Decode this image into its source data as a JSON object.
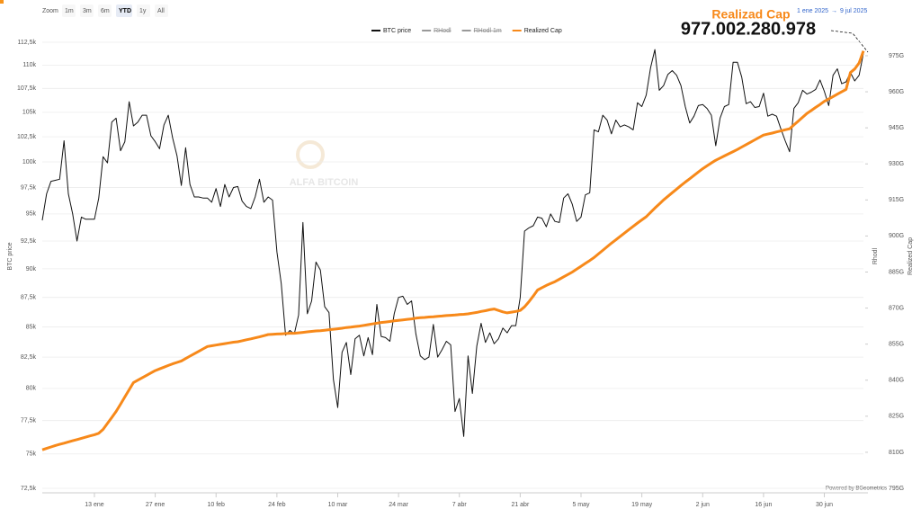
{
  "toolbar": {
    "zoom_label": "Zoom",
    "buttons": [
      "1m",
      "3m",
      "6m",
      "YTD",
      "1y",
      "All"
    ]
  },
  "date_range": {
    "from": "1 ene 2025",
    "arrow": "→",
    "to": "9 jul 2025"
  },
  "header": {
    "title": "Realizad Cap",
    "value": "977.002.280.978"
  },
  "watermark": "ALFA BITCOIN",
  "credit": "Powered by BGeometrics",
  "chart_data": {
    "type": "line",
    "categories": [
      null,
      null,
      null,
      null,
      null,
      null,
      null,
      null,
      null,
      null,
      null,
      null,
      "13 ene",
      null,
      null,
      null,
      null,
      null,
      null,
      null,
      null,
      null,
      null,
      null,
      null,
      null,
      "27 ene",
      null,
      null,
      null,
      null,
      null,
      null,
      null,
      null,
      null,
      null,
      null,
      null,
      null,
      "10 feb",
      null,
      null,
      null,
      null,
      null,
      null,
      null,
      null,
      null,
      null,
      null,
      null,
      null,
      "24 feb",
      null,
      null,
      null,
      null,
      null,
      null,
      null,
      null,
      null,
      null,
      null,
      null,
      null,
      "10 mar",
      null,
      null,
      null,
      null,
      null,
      null,
      null,
      null,
      null,
      null,
      null,
      null,
      null,
      "24 mar",
      null,
      null,
      null,
      null,
      null,
      null,
      null,
      null,
      null,
      null,
      null,
      null,
      null,
      "7 abr",
      null,
      null,
      null,
      null,
      null,
      null,
      null,
      null,
      null,
      null,
      null,
      null,
      null,
      "21 abr",
      null,
      null,
      null,
      null,
      null,
      null,
      null,
      null,
      null,
      null,
      null,
      null,
      null,
      "5 may",
      null,
      null,
      null,
      null,
      null,
      null,
      null,
      null,
      null,
      null,
      null,
      null,
      null,
      "19 may",
      null,
      null,
      null,
      null,
      null,
      null,
      null,
      null,
      null,
      null,
      null,
      null,
      null,
      "2 jun",
      null,
      null,
      null,
      null,
      null,
      null,
      null,
      null,
      null,
      null,
      null,
      null,
      null,
      "16 jun",
      null,
      null,
      null,
      null,
      null,
      null,
      null,
      null,
      null,
      null,
      null,
      null,
      null,
      "30 jun",
      null,
      null,
      null,
      null,
      null,
      null,
      null,
      null,
      null
    ],
    "series": [
      {
        "name": "BTC price",
        "color": "#111111",
        "axis": "y",
        "values": [
          94400,
          96900,
          98100,
          98200,
          98300,
          102100,
          96900,
          95000,
          92500,
          94700,
          94500,
          94500,
          94500,
          96500,
          100500,
          99900,
          104000,
          104400,
          101100,
          102000,
          106100,
          103600,
          104000,
          104700,
          104700,
          102600,
          102000,
          101300,
          103700,
          104700,
          102400,
          100600,
          97700,
          101400,
          97800,
          96600,
          96600,
          96500,
          96500,
          96100,
          97400,
          95700,
          97800,
          96600,
          97500,
          97600,
          96200,
          95700,
          95500,
          96600,
          98300,
          96100,
          96600,
          96300,
          91500,
          88700,
          84300,
          84700,
          84400,
          86000,
          94200,
          86100,
          87200,
          90600,
          89900,
          86700,
          86200,
          80700,
          78500,
          82900,
          83700,
          81100,
          84000,
          84300,
          82600,
          84100,
          82700,
          86900,
          84200,
          84100,
          83800,
          86100,
          87500,
          87600,
          86900,
          87200,
          84400,
          82600,
          82300,
          82500,
          85200,
          82500,
          83100,
          83800,
          83500,
          78200,
          79200,
          76300,
          82600,
          79600,
          83400,
          85300,
          83700,
          84500,
          83600,
          84000,
          84900,
          84500,
          85100,
          85100,
          87500,
          93400,
          93700,
          93900,
          94700,
          94600,
          93800,
          95000,
          94300,
          94200,
          96500,
          96900,
          95900,
          94300,
          94700,
          96800,
          97000,
          103200,
          103000,
          104700,
          104200,
          102800,
          104200,
          103500,
          103700,
          103500,
          103200,
          106000,
          105600,
          106800,
          109700,
          111700,
          107300,
          107800,
          109000,
          109400,
          108900,
          107800,
          105600,
          103900,
          104600,
          105700,
          105800,
          105400,
          104700,
          101600,
          104400,
          105600,
          105800,
          110300,
          110300,
          108700,
          105900,
          106100,
          105500,
          105600,
          107000,
          104600,
          104800,
          104600,
          103300,
          102100,
          101000,
          105400,
          106000,
          107300,
          106900,
          107100,
          107400,
          108400,
          107200,
          105700,
          108900,
          109600,
          108000,
          108200,
          109200,
          108300,
          108900,
          111300
        ]
      },
      {
        "name": "Realized Cap",
        "color": "#f7891a",
        "axis": "y2",
        "values": [
          811.0,
          811.6,
          812.2,
          812.8,
          813.3,
          813.8,
          814.3,
          814.8,
          815.3,
          815.8,
          816.3,
          816.8,
          817.3,
          817.9,
          819.5,
          822.0,
          824.5,
          827.0,
          830.0,
          833.0,
          836.0,
          839.0,
          840.0,
          841.0,
          842.0,
          843.0,
          844.0,
          844.7,
          845.4,
          846.1,
          846.8,
          847.4,
          848.0,
          849.0,
          850.0,
          851.0,
          852.0,
          853.0,
          854.0,
          854.3,
          854.6,
          854.9,
          855.2,
          855.5,
          855.8,
          856.0,
          856.4,
          856.8,
          857.2,
          857.6,
          858.0,
          858.5,
          859.0,
          859.1,
          859.2,
          859.3,
          859.4,
          859.5,
          859.5,
          859.7,
          859.9,
          860.1,
          860.3,
          860.5,
          860.6,
          860.8,
          861.0,
          861.2,
          861.4,
          861.6,
          861.9,
          862.1,
          862.3,
          862.5,
          862.8,
          863.1,
          863.4,
          863.7,
          864.0,
          864.2,
          864.4,
          864.7,
          864.9,
          865.1,
          865.3,
          865.5,
          865.8,
          866.0,
          866.1,
          866.3,
          866.4,
          866.6,
          866.7,
          866.9,
          867.0,
          867.1,
          867.3,
          867.4,
          867.6,
          867.9,
          868.2,
          868.6,
          868.9,
          869.3,
          869.6,
          869.0,
          868.4,
          868.0,
          868.3,
          868.6,
          869.0,
          870.5,
          872.6,
          875.0,
          877.5,
          878.5,
          879.4,
          880.2,
          881.0,
          882.0,
          883.0,
          884.0,
          885.0,
          886.2,
          887.4,
          888.6,
          889.8,
          891.0,
          892.5,
          894.0,
          895.5,
          897.0,
          898.4,
          899.8,
          901.2,
          902.6,
          904.0,
          905.4,
          906.7,
          908.0,
          909.8,
          911.6,
          913.3,
          915.0,
          916.5,
          918.0,
          919.5,
          921.0,
          922.4,
          923.8,
          925.2,
          926.6,
          928.0,
          929.2,
          930.4,
          931.5,
          932.4,
          933.3,
          934.2,
          935.1,
          936.0,
          937.0,
          938.0,
          939.0,
          940.0,
          941.0,
          942.0,
          942.4,
          942.8,
          943.3,
          943.7,
          944.2,
          944.6,
          946.2,
          947.8,
          949.4,
          951.0,
          952.2,
          953.5,
          954.7,
          956.0,
          957.0,
          958.0,
          959.0,
          960.0,
          961.0,
          968.0,
          969.5,
          972.0,
          977.0
        ]
      }
    ],
    "inactive_series": [
      "RHodl",
      "RHodl 1m"
    ],
    "ylabel": "BTC price",
    "y2label": "Realized Cap",
    "y3label": "Rhodl",
    "ylog": true,
    "grid": true,
    "ylim": [
      72500,
      112500
    ],
    "yticks": [
      {
        "value": 72500,
        "label": "72,5k"
      },
      {
        "value": 75000,
        "label": "75k"
      },
      {
        "value": 77500,
        "label": "77,5k"
      },
      {
        "value": 80000,
        "label": "80k"
      },
      {
        "value": 82500,
        "label": "82,5k"
      },
      {
        "value": 85000,
        "label": "85k"
      },
      {
        "value": 87500,
        "label": "87,5k"
      },
      {
        "value": 90000,
        "label": "90k"
      },
      {
        "value": 92500,
        "label": "92,5k"
      },
      {
        "value": 95000,
        "label": "95k"
      },
      {
        "value": 97500,
        "label": "97,5k"
      },
      {
        "value": 100000,
        "label": "100k"
      },
      {
        "value": 102500,
        "label": "102,5k"
      },
      {
        "value": 105000,
        "label": "105k"
      },
      {
        "value": 107500,
        "label": "107,5k"
      },
      {
        "value": 110000,
        "label": "110k"
      },
      {
        "value": 112500,
        "label": "112,5k"
      }
    ],
    "y2lim": [
      795,
      980.6
    ],
    "y2ticks": [
      {
        "value": 795,
        "label": "795G"
      },
      {
        "value": 810,
        "label": "810G"
      },
      {
        "value": 825,
        "label": "825G"
      },
      {
        "value": 840,
        "label": "840G"
      },
      {
        "value": 855,
        "label": "855G"
      },
      {
        "value": 870,
        "label": "870G"
      },
      {
        "value": 885,
        "label": "885G"
      },
      {
        "value": 900,
        "label": "900G"
      },
      {
        "value": 915,
        "label": "915G"
      },
      {
        "value": 930,
        "label": "930G"
      },
      {
        "value": 945,
        "label": "945G"
      },
      {
        "value": 960,
        "label": "960G"
      },
      {
        "value": 975,
        "label": "975G"
      }
    ]
  }
}
